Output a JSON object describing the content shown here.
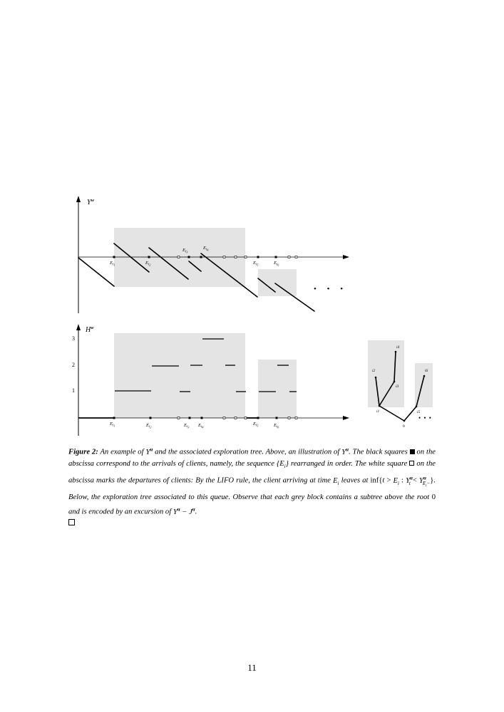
{
  "figure": {
    "top_plot": {
      "y_axis_label": "Y",
      "y_axis_label_sup": "w",
      "arrival_labels": [
        {
          "text": "E",
          "sub": "i",
          "subsub": "1"
        },
        {
          "text": "E",
          "sub": "i",
          "subsub": "2"
        },
        {
          "text": "E",
          "sub": "i",
          "subsub": "3"
        },
        {
          "text": "E",
          "sub": "i",
          "subsub": "4"
        },
        {
          "text": "E",
          "sub": "i",
          "subsub": "5"
        },
        {
          "text": "E",
          "sub": "i",
          "subsub": "6"
        }
      ],
      "ellipsis": "• • •"
    },
    "bottom_plot": {
      "y_axis_label": "H",
      "y_axis_label_sup": "w",
      "y_ticks": [
        "1",
        "2",
        "3"
      ],
      "arrival_labels": [
        {
          "text": "E",
          "sub": "i",
          "subsub": "1"
        },
        {
          "text": "E",
          "sub": "i",
          "subsub": "2"
        },
        {
          "text": "E",
          "sub": "i",
          "subsub": "3"
        },
        {
          "text": "E",
          "sub": "i",
          "subsub": "4"
        },
        {
          "text": "E",
          "sub": "i",
          "subsub": "5"
        },
        {
          "text": "E",
          "sub": "i",
          "subsub": "6"
        }
      ]
    },
    "tree": {
      "node_labels": [
        "i1",
        "i2",
        "i3",
        "i4",
        "i5",
        "i6"
      ],
      "root_label": "0",
      "ellipsis": "• • •"
    }
  },
  "caption": {
    "label": "Figure 2:",
    "part1": " An example of ",
    "part2": " and the associated exploration tree. Above, an illustration of ",
    "part3": ". The black squares ",
    "part4": " on the abscissa correspond to the arrivals of clients, namely, the sequence ",
    "part5": " rearranged in order. The white square ",
    "part6": " on the abscissa marks the departures of clients: By the LIFO rule, the client arriving at time ",
    "part7": " leaves at ",
    "part8": ". Below, the exploration tree associated to this queue. Observe that each grey block contains a subtree above the root ",
    "part9": " and is encoded by an excursion of ",
    "part10": "."
  },
  "page_number": "11"
}
